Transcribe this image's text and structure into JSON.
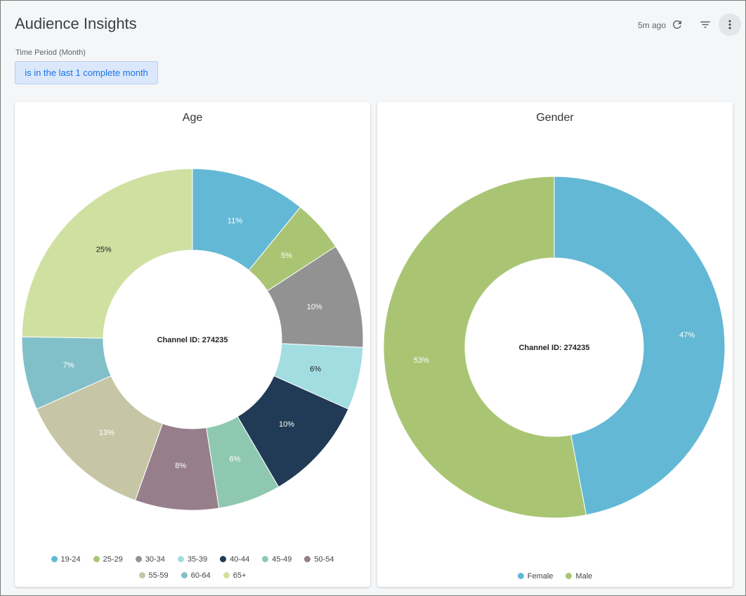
{
  "header": {
    "title": "Audience Insights",
    "updated": "5m ago",
    "icons": [
      "refresh-icon",
      "filter-icon",
      "more-vert-icon"
    ]
  },
  "filter": {
    "label": "Time Period (Month)",
    "value": "is in the last 1 complete month"
  },
  "colors": {
    "accent": "#1a73e8"
  },
  "chart_data": [
    {
      "type": "pie",
      "title": "Age",
      "center_label": "Channel ID: 274235",
      "categories": [
        "19-24",
        "25-29",
        "30-34",
        "35-39",
        "40-44",
        "45-49",
        "50-54",
        "55-59",
        "60-64",
        "65+"
      ],
      "values": [
        11,
        5,
        10,
        6,
        10,
        6,
        8,
        13,
        7,
        25
      ],
      "labels": [
        "11%",
        "5%",
        "10%",
        "6%",
        "10%",
        "6%",
        "8%",
        "13%",
        "7%",
        "25%"
      ],
      "colors": [
        "#63b8d5",
        "#a9c573",
        "#929292",
        "#a2dde2",
        "#213b56",
        "#8fc8b0",
        "#967f8b",
        "#c6c6a6",
        "#82c0c9",
        "#d0e0a1"
      ],
      "label_colors": [
        "#fff",
        "#fff",
        "#fff",
        "#222",
        "#fff",
        "#fff",
        "#fff",
        "#fff",
        "#fff",
        "#222"
      ],
      "legend_placement": "bottom"
    },
    {
      "type": "pie",
      "title": "Gender",
      "center_label": "Channel ID: 274235",
      "categories": [
        "Female",
        "Male"
      ],
      "values": [
        47,
        53
      ],
      "labels": [
        "47%",
        "53%"
      ],
      "colors": [
        "#63b8d5",
        "#a9c573"
      ],
      "label_colors": [
        "#fff",
        "#fff"
      ],
      "legend_placement": "bottom"
    }
  ]
}
